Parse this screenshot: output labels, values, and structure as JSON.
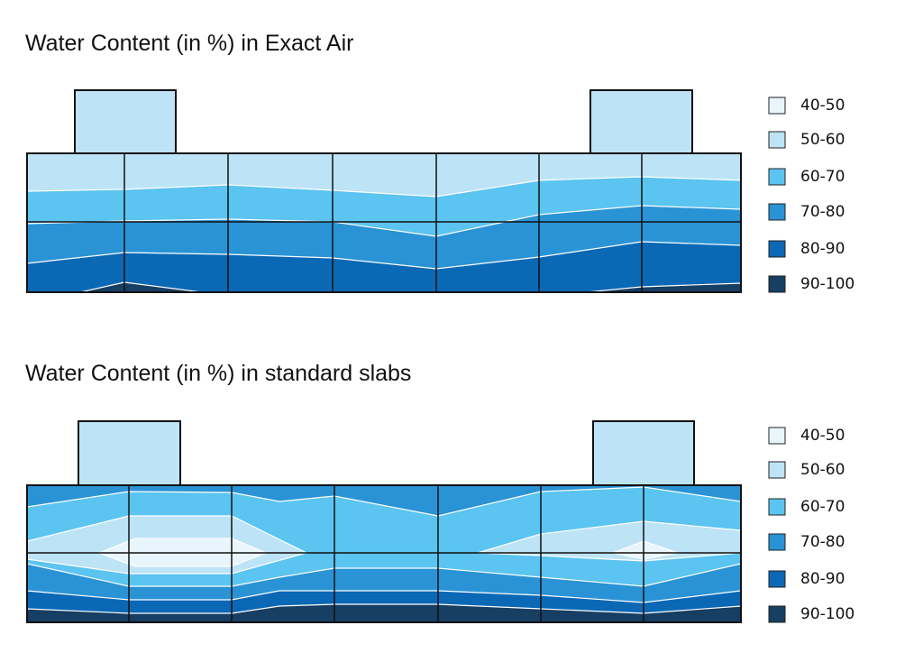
{
  "panels": [
    {
      "title": "Water Content (in %) in Exact Air",
      "legend": [
        "40-50",
        "50-60",
        "60-70",
        "70-80",
        "80-90",
        "90-100"
      ]
    },
    {
      "title": "Water Content (in %) in standard slabs",
      "legend": [
        "40-50",
        "50-60",
        "60-70",
        "70-80",
        "80-90",
        "90-100"
      ]
    }
  ]
}
